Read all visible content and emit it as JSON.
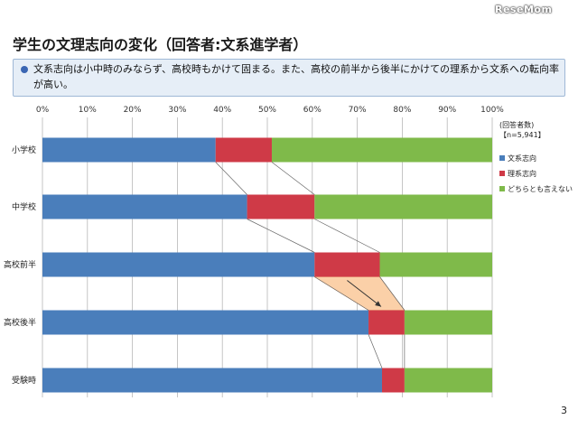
{
  "title": "学生の文理志向の変化（回答者:文系進学者）",
  "watermark": "ReseMom",
  "summary": "文系志向は小中時のみならず、高校時もかけて固まる。また、高校の前半から後半にかけての理系から文系への転向率が高い。",
  "page_number": "3",
  "chart_data": {
    "type": "bar",
    "orientation": "horizontal",
    "stacked": true,
    "percent": true,
    "categories": [
      "小学校",
      "中学校",
      "高校前半",
      "高校後半",
      "受験時"
    ],
    "series": [
      {
        "name": "文系志向",
        "color": "#4a7ebb",
        "values": [
          38.5,
          45.5,
          60.5,
          72.5,
          75.5
        ]
      },
      {
        "name": "理系志向",
        "color": "#cf3a47",
        "values": [
          12.5,
          15.0,
          14.5,
          8.0,
          5.0
        ]
      },
      {
        "name": "どちらとも言えない",
        "color": "#7fba4a",
        "values": [
          49.0,
          39.5,
          25.0,
          19.5,
          19.5
        ]
      }
    ],
    "x_ticks": [
      "0%",
      "10%",
      "20%",
      "30%",
      "40%",
      "50%",
      "60%",
      "70%",
      "80%",
      "90%",
      "100%"
    ],
    "xlim": [
      0,
      100
    ],
    "legend_note": [
      "(回答者数)",
      "【n=5,941】"
    ],
    "legend_position": "right",
    "highlight": {
      "from_category": "高校前半",
      "to_category": "高校後半",
      "series": "理系志向",
      "color": "#fbd0a8"
    },
    "grid": true
  }
}
